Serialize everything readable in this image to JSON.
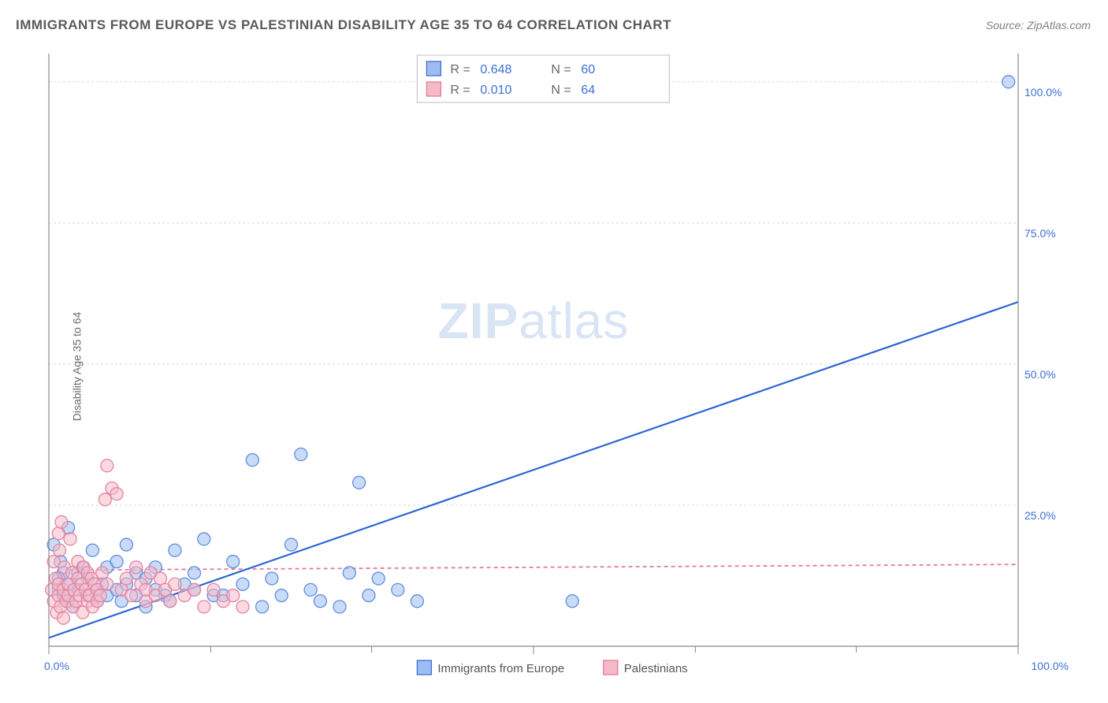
{
  "title": "IMMIGRANTS FROM EUROPE VS PALESTINIAN DISABILITY AGE 35 TO 64 CORRELATION CHART",
  "source_label": "Source:",
  "source_value": "ZipAtlas.com",
  "ylabel": "Disability Age 35 to 64",
  "watermark_a": "ZIP",
  "watermark_b": "atlas",
  "chart": {
    "type": "scatter",
    "background_color": "#ffffff",
    "grid_color": "#d8d8d8",
    "axis_color": "#888888",
    "xlim": [
      0,
      100
    ],
    "ylim": [
      0,
      105
    ],
    "xtick_major": [
      0,
      50,
      100
    ],
    "xtick_minor": [
      16.7,
      33.3,
      66.7,
      83.3
    ],
    "xtick_labels": [
      "0.0%",
      "100.0%"
    ],
    "ytick_values": [
      25,
      50,
      75,
      100
    ],
    "ytick_labels": [
      "25.0%",
      "50.0%",
      "75.0%",
      "100.0%"
    ],
    "corr_box": {
      "rows": [
        {
          "swatch_color": "#9dbdf0",
          "swatch_border": "#3d6fd6",
          "r_label": "R =",
          "r": "0.648",
          "n_label": "N =",
          "n": "60"
        },
        {
          "swatch_color": "#f5b9c8",
          "swatch_border": "#e67a97",
          "r_label": "R =",
          "r": "0.010",
          "n_label": "N =",
          "n": "64"
        }
      ]
    },
    "legend": [
      {
        "swatch_color": "#9dbdf0",
        "swatch_border": "#3d6fd6",
        "label": "Immigrants from Europe"
      },
      {
        "swatch_color": "#f5b9c8",
        "swatch_border": "#e67a97",
        "label": "Palestinians"
      }
    ],
    "series": [
      {
        "name": "europe",
        "marker_fill": "rgba(157,189,240,0.55)",
        "marker_stroke": "#5f8ee0",
        "marker_r": 8,
        "trend": {
          "x1": 0,
          "y1": 1.5,
          "x2": 100,
          "y2": 61,
          "stroke": "#2a63d4",
          "width": 2.2,
          "dash": ""
        },
        "points": [
          [
            0.5,
            18
          ],
          [
            1,
            12
          ],
          [
            1,
            10
          ],
          [
            1.2,
            15
          ],
          [
            1.5,
            9
          ],
          [
            1.5,
            13
          ],
          [
            2,
            21
          ],
          [
            2,
            8
          ],
          [
            2.2,
            11
          ],
          [
            2.5,
            7
          ],
          [
            3,
            13
          ],
          [
            3,
            10
          ],
          [
            3.5,
            14
          ],
          [
            4,
            9
          ],
          [
            4,
            12
          ],
          [
            4.5,
            17
          ],
          [
            5,
            8
          ],
          [
            5,
            10
          ],
          [
            5.5,
            11
          ],
          [
            6,
            14
          ],
          [
            6,
            9
          ],
          [
            7,
            15
          ],
          [
            7,
            10
          ],
          [
            7.5,
            8
          ],
          [
            8,
            18
          ],
          [
            8,
            11
          ],
          [
            9,
            9
          ],
          [
            9,
            13
          ],
          [
            10,
            7
          ],
          [
            10,
            12
          ],
          [
            11,
            14
          ],
          [
            11,
            10
          ],
          [
            12,
            9
          ],
          [
            12.5,
            8
          ],
          [
            13,
            17
          ],
          [
            14,
            11
          ],
          [
            15,
            13
          ],
          [
            15,
            10
          ],
          [
            16,
            19
          ],
          [
            17,
            9
          ],
          [
            18,
            9
          ],
          [
            19,
            15
          ],
          [
            20,
            11
          ],
          [
            21,
            33
          ],
          [
            22,
            7
          ],
          [
            23,
            12
          ],
          [
            24,
            9
          ],
          [
            25,
            18
          ],
          [
            26,
            34
          ],
          [
            27,
            10
          ],
          [
            28,
            8
          ],
          [
            30,
            7
          ],
          [
            31,
            13
          ],
          [
            32,
            29
          ],
          [
            33,
            9
          ],
          [
            34,
            12
          ],
          [
            36,
            10
          ],
          [
            38,
            8
          ],
          [
            54,
            8
          ],
          [
            99,
            100
          ]
        ]
      },
      {
        "name": "palestinians",
        "marker_fill": "rgba(245,185,200,0.55)",
        "marker_stroke": "#e583a0",
        "marker_r": 8,
        "trend": {
          "x1": 2,
          "y1": 13.5,
          "x2": 100,
          "y2": 14.5,
          "stroke": "#e67a97",
          "width": 1.8,
          "dash": "5,4"
        },
        "points": [
          [
            0.3,
            10
          ],
          [
            0.5,
            8
          ],
          [
            0.5,
            15
          ],
          [
            0.7,
            12
          ],
          [
            0.8,
            6
          ],
          [
            1,
            20
          ],
          [
            1,
            9
          ],
          [
            1,
            11
          ],
          [
            1.1,
            17
          ],
          [
            1.2,
            7
          ],
          [
            1.3,
            22
          ],
          [
            1.5,
            5
          ],
          [
            1.5,
            10
          ],
          [
            1.6,
            14
          ],
          [
            1.8,
            8
          ],
          [
            2,
            9
          ],
          [
            2,
            11
          ],
          [
            2.2,
            19
          ],
          [
            2.4,
            13
          ],
          [
            2.5,
            7
          ],
          [
            2.6,
            10
          ],
          [
            2.8,
            8
          ],
          [
            3,
            12
          ],
          [
            3,
            15
          ],
          [
            3.2,
            9
          ],
          [
            3.4,
            11
          ],
          [
            3.5,
            6
          ],
          [
            3.6,
            14
          ],
          [
            3.8,
            10
          ],
          [
            4,
            8
          ],
          [
            4,
            13
          ],
          [
            4.2,
            9
          ],
          [
            4.4,
            12
          ],
          [
            4.5,
            7
          ],
          [
            4.7,
            11
          ],
          [
            5,
            10
          ],
          [
            5,
            8
          ],
          [
            5.3,
            9
          ],
          [
            5.5,
            13
          ],
          [
            5.8,
            26
          ],
          [
            6,
            32
          ],
          [
            6,
            11
          ],
          [
            6.5,
            28
          ],
          [
            7,
            27
          ],
          [
            7.5,
            10
          ],
          [
            8,
            12
          ],
          [
            8.5,
            9
          ],
          [
            9,
            14
          ],
          [
            9.5,
            11
          ],
          [
            10,
            8
          ],
          [
            10,
            10
          ],
          [
            10.5,
            13
          ],
          [
            11,
            9
          ],
          [
            11.5,
            12
          ],
          [
            12,
            10
          ],
          [
            12.5,
            8
          ],
          [
            13,
            11
          ],
          [
            14,
            9
          ],
          [
            15,
            10
          ],
          [
            16,
            7
          ],
          [
            17,
            10
          ],
          [
            18,
            8
          ],
          [
            19,
            9
          ],
          [
            20,
            7
          ]
        ]
      }
    ]
  }
}
